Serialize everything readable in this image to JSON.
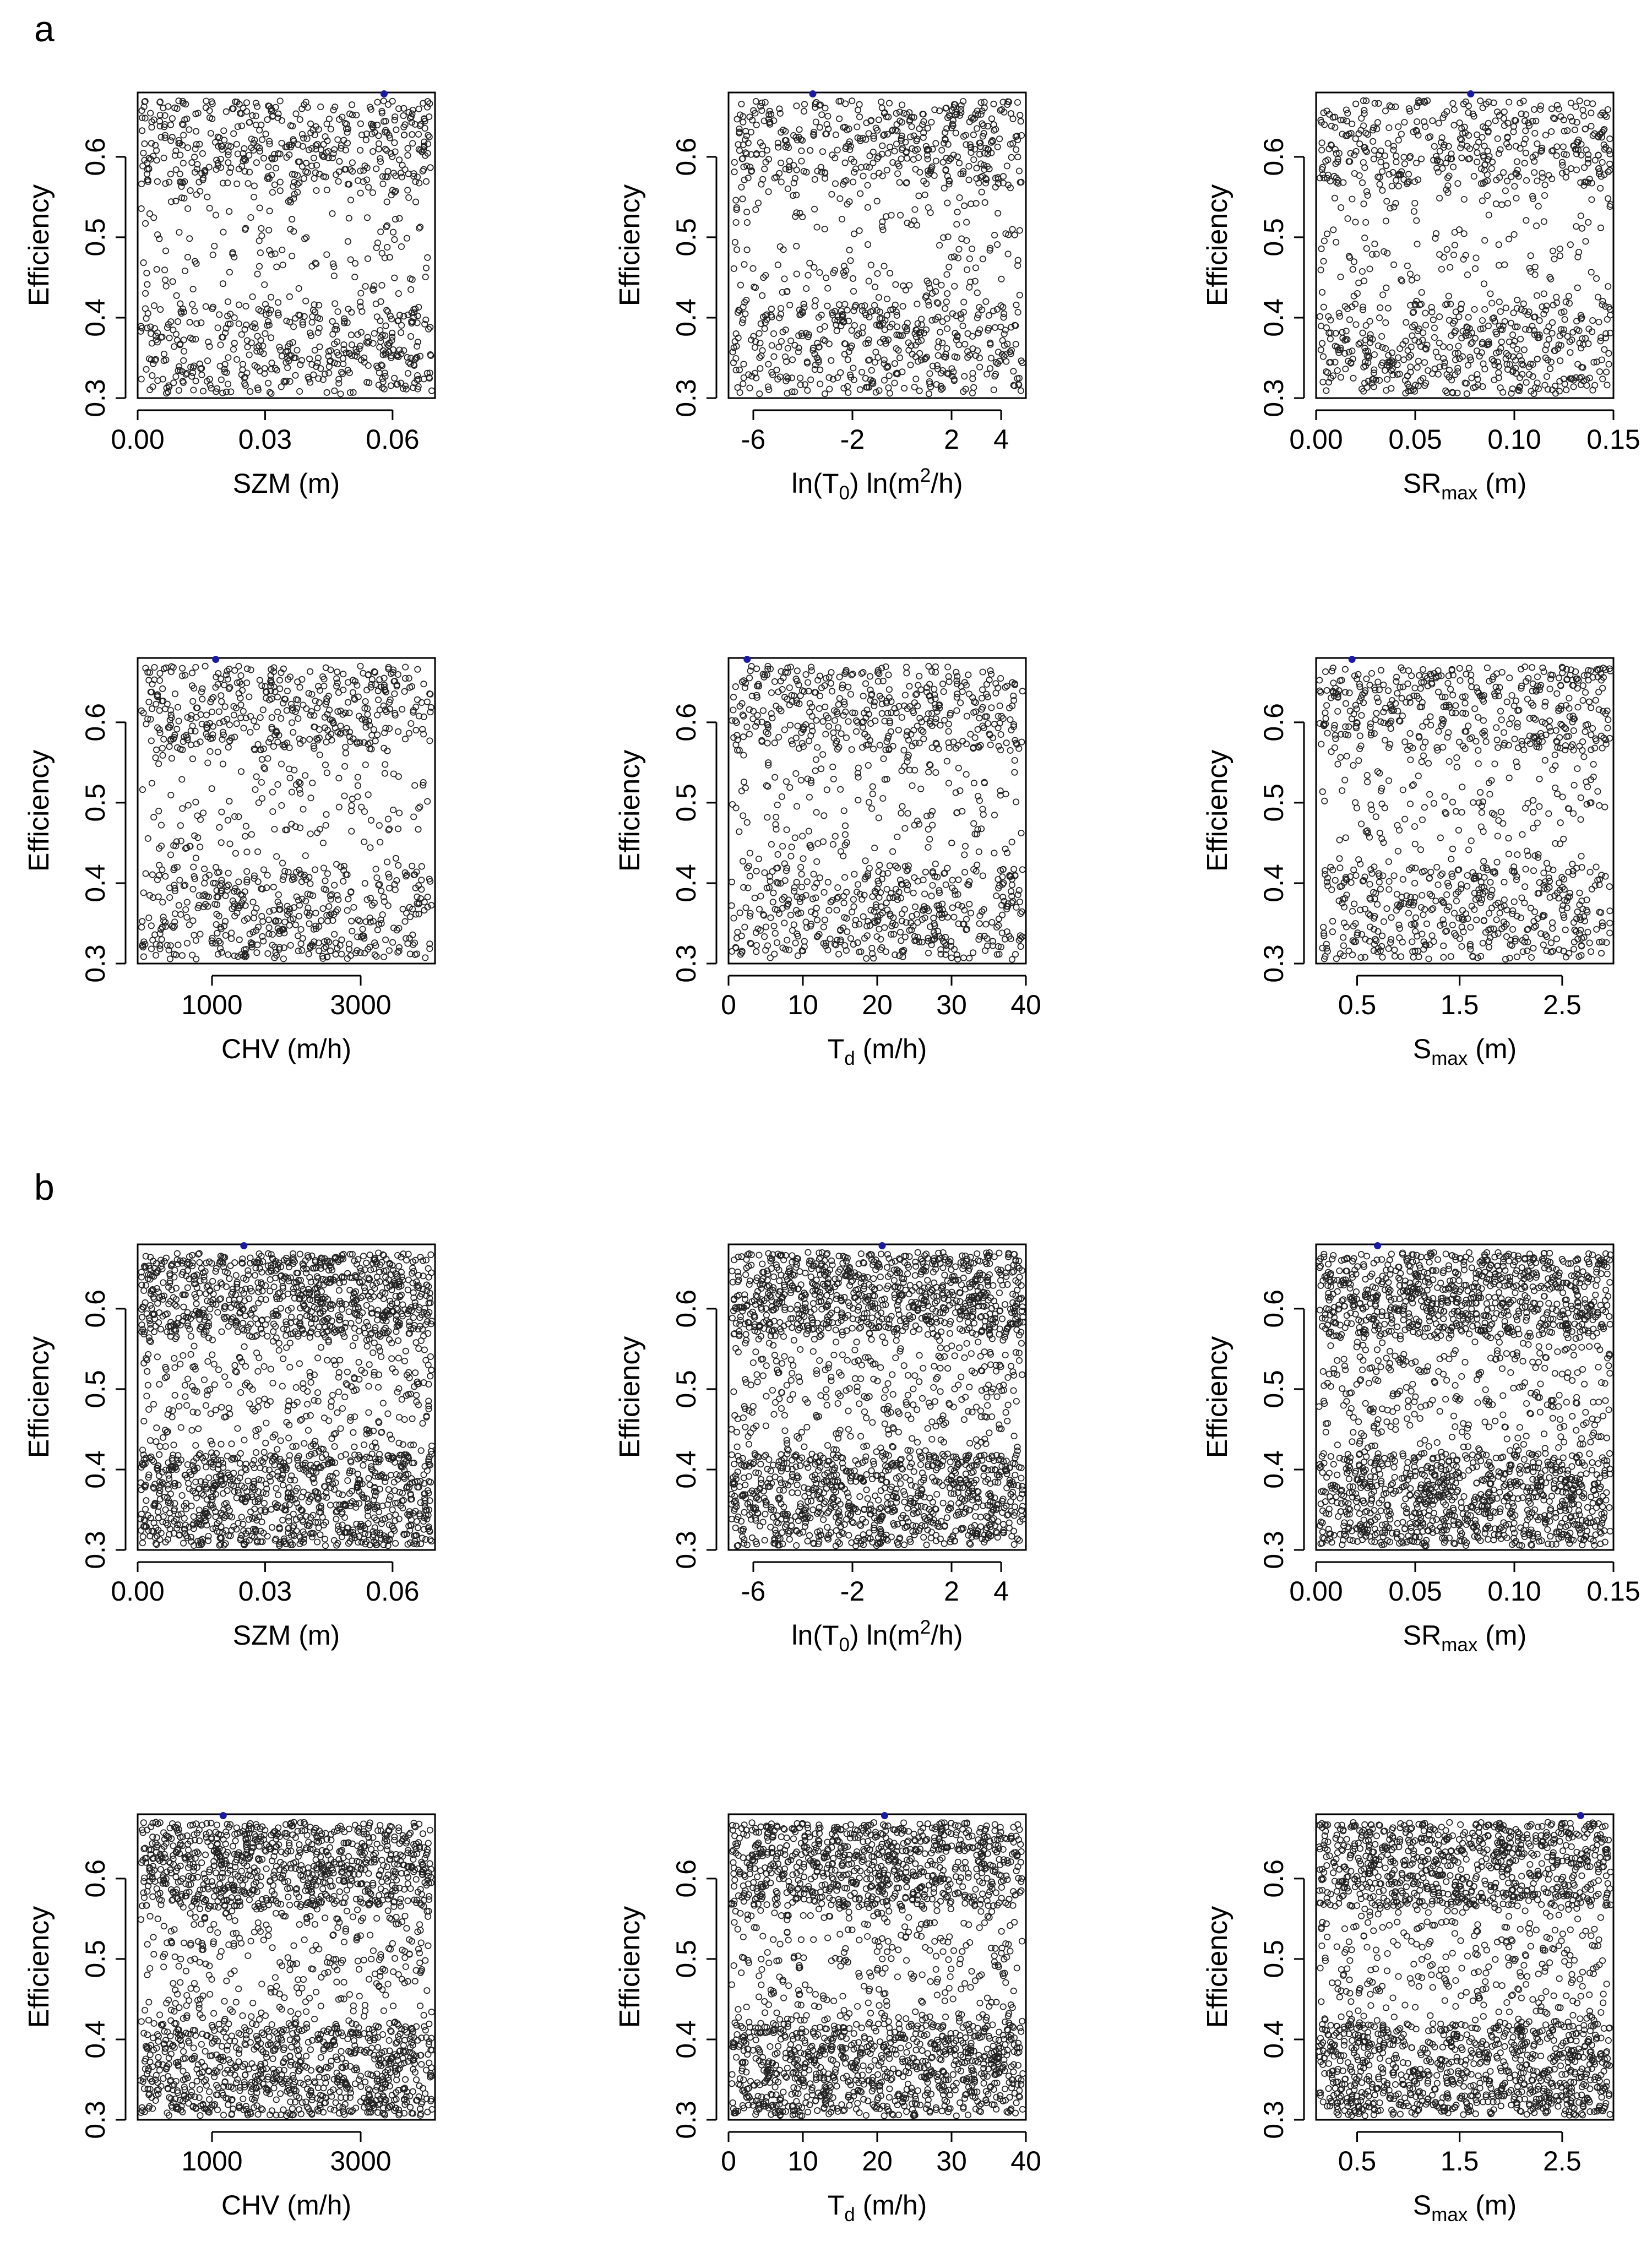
{
  "figure": {
    "panel_a_label": "a",
    "panel_b_label": "b"
  },
  "colors": {
    "points": "#222222",
    "best": "#1a1aa6",
    "frame": "#000000"
  },
  "chart_data": [
    {
      "id": "a1",
      "panel": "a",
      "type": "scatter",
      "ylabel": "Efficiency",
      "xlabel": "SZM (m)",
      "xlim": [
        0,
        0.07
      ],
      "ylim": [
        0.3,
        0.68
      ],
      "xticks": [
        0,
        0.03,
        0.06
      ],
      "xtick_labels": [
        "0.00",
        "0.03",
        "0.06"
      ],
      "yticks": [
        0.3,
        0.4,
        0.5,
        0.6
      ],
      "ytick_labels": [
        "0.3",
        "0.4",
        "0.5",
        "0.6"
      ],
      "n_points": 1000,
      "best": {
        "x": 0.058,
        "y": 0.681
      },
      "grid": false
    },
    {
      "id": "a2",
      "panel": "a",
      "type": "scatter",
      "ylabel": "Efficiency",
      "xlabel": "ln(T0)   ln(m2/h)",
      "xlim": [
        -7,
        5
      ],
      "ylim": [
        0.3,
        0.68
      ],
      "xticks": [
        -6,
        -2,
        2,
        4
      ],
      "xtick_labels": [
        "-6",
        "-2",
        "2",
        "4"
      ],
      "yticks": [
        0.3,
        0.4,
        0.5,
        0.6
      ],
      "ytick_labels": [
        "0.3",
        "0.4",
        "0.5",
        "0.6"
      ],
      "n_points": 1000,
      "best": {
        "x": -3.6,
        "y": 0.681
      },
      "grid": false
    },
    {
      "id": "a3",
      "panel": "a",
      "type": "scatter",
      "ylabel": "Efficiency",
      "xlabel": "SRmax (m)",
      "xlim": [
        0,
        0.15
      ],
      "ylim": [
        0.3,
        0.68
      ],
      "xticks": [
        0,
        0.05,
        0.1,
        0.15
      ],
      "xtick_labels": [
        "0.00",
        "0.05",
        "0.10",
        "0.15"
      ],
      "yticks": [
        0.3,
        0.4,
        0.5,
        0.6
      ],
      "ytick_labels": [
        "0.3",
        "0.4",
        "0.5",
        "0.6"
      ],
      "n_points": 1000,
      "best": {
        "x": 0.078,
        "y": 0.681
      },
      "grid": false
    },
    {
      "id": "a4",
      "panel": "a",
      "type": "scatter",
      "ylabel": "Efficiency",
      "xlabel": "CHV (m/h)",
      "xlim": [
        0,
        4000
      ],
      "ylim": [
        0.3,
        0.68
      ],
      "xticks": [
        1000,
        3000
      ],
      "xtick_labels": [
        "1000",
        "3000"
      ],
      "yticks": [
        0.3,
        0.4,
        0.5,
        0.6
      ],
      "ytick_labels": [
        "0.3",
        "0.4",
        "0.5",
        "0.6"
      ],
      "n_points": 1000,
      "best": {
        "x": 1050,
        "y": 0.681
      },
      "grid": false
    },
    {
      "id": "a5",
      "panel": "a",
      "type": "scatter",
      "ylabel": "Efficiency",
      "xlabel": "Td (m/h)",
      "xlim": [
        0,
        40
      ],
      "ylim": [
        0.3,
        0.68
      ],
      "xticks": [
        0,
        10,
        20,
        30,
        40
      ],
      "xtick_labels": [
        "0",
        "10",
        "20",
        "30",
        "40"
      ],
      "yticks": [
        0.3,
        0.4,
        0.5,
        0.6
      ],
      "ytick_labels": [
        "0.3",
        "0.4",
        "0.5",
        "0.6"
      ],
      "n_points": 1000,
      "best": {
        "x": 2.5,
        "y": 0.681
      },
      "grid": false
    },
    {
      "id": "a6",
      "panel": "a",
      "type": "scatter",
      "ylabel": "Efficiency",
      "xlabel": "Smax (m)",
      "xlim": [
        0.1,
        3
      ],
      "ylim": [
        0.3,
        0.68
      ],
      "xticks": [
        0.5,
        1.5,
        2.5
      ],
      "xtick_labels": [
        "0.5",
        "1.5",
        "2.5"
      ],
      "yticks": [
        0.3,
        0.4,
        0.5,
        0.6
      ],
      "ytick_labels": [
        "0.3",
        "0.4",
        "0.5",
        "0.6"
      ],
      "n_points": 1000,
      "best": {
        "x": 0.45,
        "y": 0.681
      },
      "grid": false
    },
    {
      "id": "b1",
      "panel": "b",
      "type": "scatter",
      "ylabel": "Efficiency",
      "xlabel": "SZM (m)",
      "xlim": [
        0,
        0.07
      ],
      "ylim": [
        0.3,
        0.68
      ],
      "xticks": [
        0,
        0.03,
        0.06
      ],
      "xtick_labels": [
        "0.00",
        "0.03",
        "0.06"
      ],
      "yticks": [
        0.3,
        0.4,
        0.5,
        0.6
      ],
      "ytick_labels": [
        "0.3",
        "0.4",
        "0.5",
        "0.6"
      ],
      "n_points": 2000,
      "best": {
        "x": 0.025,
        "y": 0.681
      },
      "grid": false
    },
    {
      "id": "b2",
      "panel": "b",
      "type": "scatter",
      "ylabel": "Efficiency",
      "xlabel": "ln(T0)   ln(m2/h)",
      "xlim": [
        -7,
        5
      ],
      "ylim": [
        0.3,
        0.68
      ],
      "xticks": [
        -6,
        -2,
        2,
        4
      ],
      "xtick_labels": [
        "-6",
        "-2",
        "2",
        "4"
      ],
      "yticks": [
        0.3,
        0.4,
        0.5,
        0.6
      ],
      "ytick_labels": [
        "0.3",
        "0.4",
        "0.5",
        "0.6"
      ],
      "n_points": 2000,
      "best": {
        "x": -0.8,
        "y": 0.681
      },
      "grid": false
    },
    {
      "id": "b3",
      "panel": "b",
      "type": "scatter",
      "ylabel": "Efficiency",
      "xlabel": "SRmax (m)",
      "xlim": [
        0,
        0.15
      ],
      "ylim": [
        0.3,
        0.68
      ],
      "xticks": [
        0,
        0.05,
        0.1,
        0.15
      ],
      "xtick_labels": [
        "0.00",
        "0.05",
        "0.10",
        "0.15"
      ],
      "yticks": [
        0.3,
        0.4,
        0.5,
        0.6
      ],
      "ytick_labels": [
        "0.3",
        "0.4",
        "0.5",
        "0.6"
      ],
      "n_points": 2000,
      "best": {
        "x": 0.031,
        "y": 0.681
      },
      "grid": false
    },
    {
      "id": "b4",
      "panel": "b",
      "type": "scatter",
      "ylabel": "Efficiency",
      "xlabel": "CHV (m/h)",
      "xlim": [
        0,
        4000
      ],
      "ylim": [
        0.3,
        0.68
      ],
      "xticks": [
        1000,
        3000
      ],
      "xtick_labels": [
        "1000",
        "3000"
      ],
      "yticks": [
        0.3,
        0.4,
        0.5,
        0.6
      ],
      "ytick_labels": [
        "0.3",
        "0.4",
        "0.5",
        "0.6"
      ],
      "n_points": 2000,
      "best": {
        "x": 1150,
        "y": 0.681
      },
      "grid": false
    },
    {
      "id": "b5",
      "panel": "b",
      "type": "scatter",
      "ylabel": "Efficiency",
      "xlabel": "Td (m/h)",
      "xlim": [
        0,
        40
      ],
      "ylim": [
        0.3,
        0.68
      ],
      "xticks": [
        0,
        10,
        20,
        30,
        40
      ],
      "xtick_labels": [
        "0",
        "10",
        "20",
        "30",
        "40"
      ],
      "yticks": [
        0.3,
        0.4,
        0.5,
        0.6
      ],
      "ytick_labels": [
        "0.3",
        "0.4",
        "0.5",
        "0.6"
      ],
      "n_points": 2000,
      "best": {
        "x": 21,
        "y": 0.681
      },
      "grid": false
    },
    {
      "id": "b6",
      "panel": "b",
      "type": "scatter",
      "ylabel": "Efficiency",
      "xlabel": "Smax (m)",
      "xlim": [
        0.1,
        3
      ],
      "ylim": [
        0.3,
        0.68
      ],
      "xticks": [
        0.5,
        1.5,
        2.5
      ],
      "xtick_labels": [
        "0.5",
        "1.5",
        "2.5"
      ],
      "yticks": [
        0.3,
        0.4,
        0.5,
        0.6
      ],
      "ytick_labels": [
        "0.3",
        "0.4",
        "0.5",
        "0.6"
      ],
      "n_points": 2000,
      "best": {
        "x": 2.68,
        "y": 0.681
      },
      "grid": false
    }
  ]
}
